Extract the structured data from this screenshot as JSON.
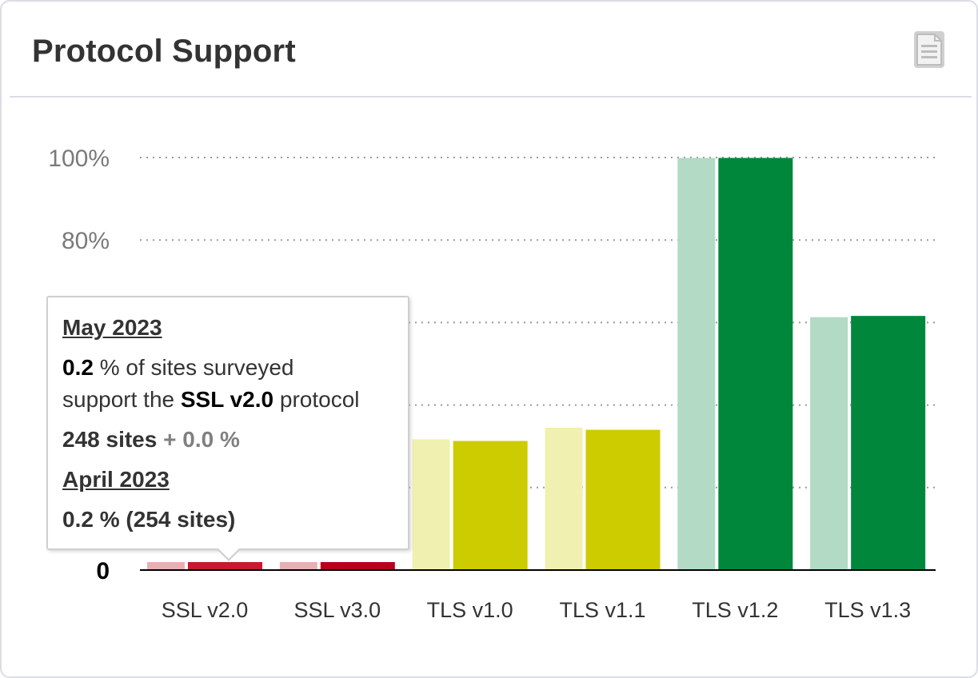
{
  "card": {
    "title": "Protocol Support",
    "icon": "document-icon"
  },
  "chart_data": {
    "type": "bar",
    "categories": [
      "SSL v2.0",
      "SSL v3.0",
      "TLS v1.0",
      "TLS v1.1",
      "TLS v1.2",
      "TLS v1.3"
    ],
    "series": [
      {
        "name": "April 2023",
        "values": [
          0.2,
          0.2,
          31.7,
          34.5,
          99.9,
          61.3
        ]
      },
      {
        "name": "May 2023",
        "values": [
          0.2,
          0.2,
          31.3,
          34.0,
          99.9,
          61.6
        ]
      }
    ],
    "y_ticks": [
      {
        "value": 0,
        "label": "0"
      },
      {
        "value": 20,
        "label": ""
      },
      {
        "value": 40,
        "label": ""
      },
      {
        "value": 60,
        "label": ""
      },
      {
        "value": 80,
        "label": "80%"
      },
      {
        "value": 100,
        "label": "100%"
      }
    ],
    "ylim": [
      0,
      100
    ],
    "grid": "dotted-horizontal",
    "bar_colors": {
      "SSL v2.0": {
        "prev": "#e8b0b5",
        "cur": "#c8192e"
      },
      "SSL v3.0": {
        "prev": "#e8b0b5",
        "cur": "#b8001e"
      },
      "TLS v1.0": {
        "prev": "#f0f0b0",
        "cur": "#cccc00"
      },
      "TLS v1.1": {
        "prev": "#f0f0b0",
        "cur": "#cccc00"
      },
      "TLS v1.2": {
        "prev": "#b2dac4",
        "cur": "#00873c"
      },
      "TLS v1.3": {
        "prev": "#b2dac4",
        "cur": "#00873c"
      }
    }
  },
  "tooltip": {
    "month": "May 2023",
    "percent": "0.2",
    "text_a": " % of sites surveyed",
    "text_b": "support the ",
    "protocol": "SSL v2.0",
    "text_c": " protocol",
    "sites": "248 sites",
    "plus": " + ",
    "change": "0.0 %",
    "prev_month": "April 2023",
    "prev_value": "0.2 % (254 sites)"
  }
}
